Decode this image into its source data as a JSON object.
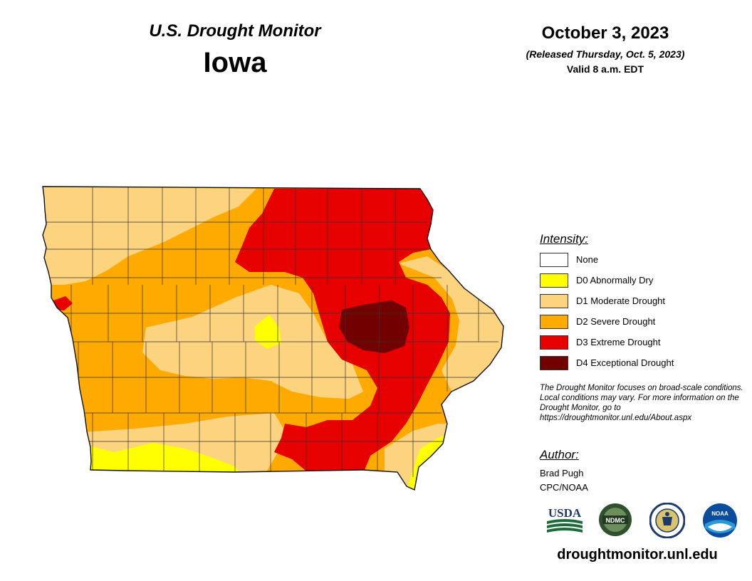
{
  "header": {
    "title": "U.S. Drought Monitor",
    "region": "Iowa",
    "date": "October 3, 2023",
    "released": "(Released Thursday, Oct. 5, 2023)",
    "valid": "Valid 8 a.m. EDT"
  },
  "legend": {
    "heading": "Intensity:",
    "items": [
      {
        "label": "None",
        "color": "#ffffff"
      },
      {
        "label": "D0 Abnormally Dry",
        "color": "#ffff00"
      },
      {
        "label": "D1 Moderate Drought",
        "color": "#fcd37f"
      },
      {
        "label": "D2 Severe Drought",
        "color": "#ffaa00"
      },
      {
        "label": "D3 Extreme Drought",
        "color": "#e60000"
      },
      {
        "label": "D4 Exceptional Drought",
        "color": "#730000"
      }
    ]
  },
  "note": "The Drought Monitor focuses on broad-scale conditions. Local conditions may vary. For more information on the Drought Monitor, go to https://droughtmonitor.unl.edu/About.aspx",
  "author": {
    "heading": "Author:",
    "name": "Brad Pugh",
    "org": "CPC/NOAA"
  },
  "logos": [
    {
      "name": "usda-logo",
      "text": "USDA"
    },
    {
      "name": "ndmc-logo",
      "text": "NDMC"
    },
    {
      "name": "doc-seal-logo",
      "text": ""
    },
    {
      "name": "noaa-logo",
      "text": "NOAA"
    }
  ],
  "website": "droughtmonitor.unl.edu"
}
